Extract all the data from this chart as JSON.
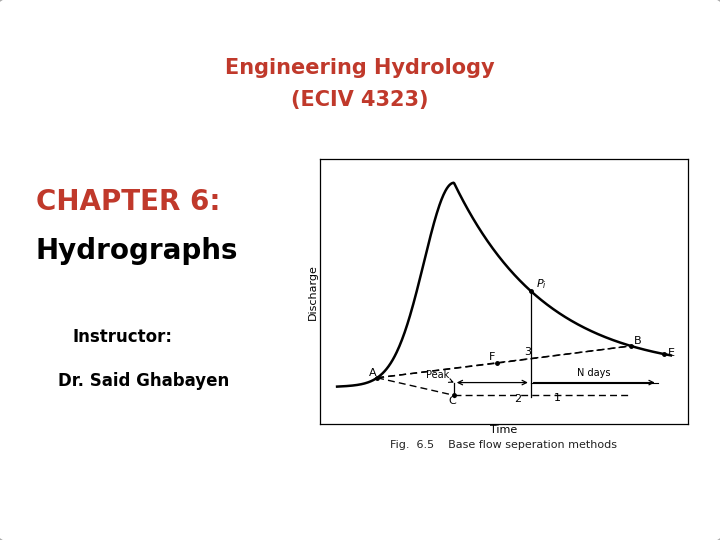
{
  "title_line1": "Engineering Hydrology",
  "title_line2": "(ECIV 4323)",
  "title_color": "#c0392b",
  "chapter_text": "CHAPTER 6:",
  "chapter_color": "#c0392b",
  "hydrograph_text": "Hydrographs",
  "instructor_label": "Instructor:",
  "instructor_name": "Dr. Said Ghabayen",
  "fig_caption": "Fig.  6.5    Base flow seperation methods",
  "background_color": "#ffffff",
  "border_color": "#aaaaaa",
  "text_color": "#000000"
}
